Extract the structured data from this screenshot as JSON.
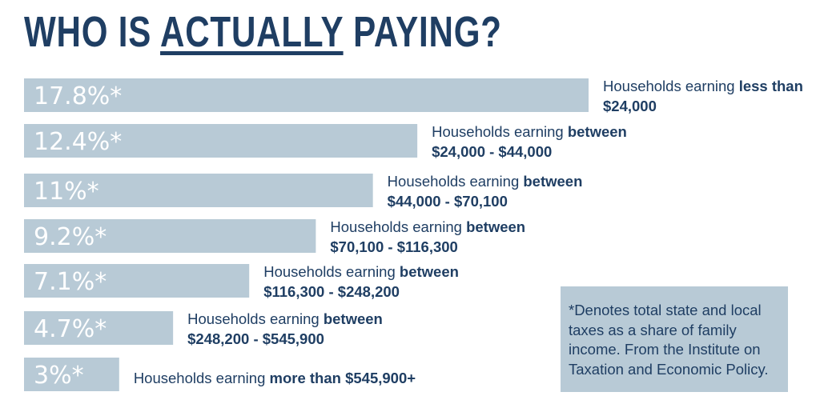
{
  "title": {
    "before": "WHO IS ",
    "emphasis": "ACTUALLY",
    "after": " PAYING?"
  },
  "note": "*Denotes total state and local taxes as a share of family income. From the Institute on Taxation and Economic Policy.",
  "colors": {
    "bar": "#b8cad6",
    "text": "#1f3e63",
    "bar_label": "#ffffff"
  },
  "chart_data": {
    "type": "bar",
    "orientation": "horizontal",
    "title": "WHO IS ACTUALLY PAYING?",
    "unit": "%",
    "categories": [
      "Households earning less than $24,000",
      "Households earning between $24,000 - $44,000",
      "Households earning between $44,000 - $70,100",
      "Households earning between $70,100 - $116,300",
      "Households earning between $116,300 - $248,200",
      "Households earning between $248,200 - $545,900",
      "Households earning more than $545,900+"
    ],
    "values": [
      17.8,
      12.4,
      11,
      9.2,
      7.1,
      4.7,
      3
    ],
    "data_labels": [
      "17.8%*",
      "12.4%*",
      "11%*",
      "9.2%*",
      "7.1%*",
      "4.7%*",
      "3%*"
    ],
    "category_parts": [
      {
        "plain": "Households earning ",
        "bold": "less than",
        "line2": "$24,000"
      },
      {
        "plain": "Households earning ",
        "bold": "between",
        "line2": "$24,000 - $44,000"
      },
      {
        "plain": "Households earning ",
        "bold": "between",
        "line2": "$44,000 - $70,100"
      },
      {
        "plain": "Households earning ",
        "bold": "between",
        "line2": "$70,100 - $116,300"
      },
      {
        "plain": "Households earning ",
        "bold": "between",
        "line2": "$116,300 - $248,200"
      },
      {
        "plain": "Households earning ",
        "bold": "between",
        "line2": "$248,200 - $545,900"
      },
      {
        "plain": "Households earning ",
        "bold": "more than $545,900+",
        "line2": ""
      }
    ],
    "xlabel": "",
    "ylabel": "",
    "grid": false,
    "legend": "none"
  }
}
